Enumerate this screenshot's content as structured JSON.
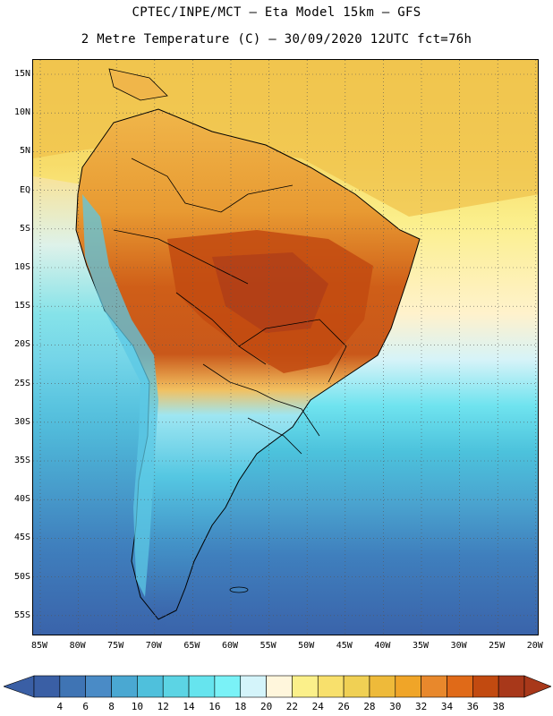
{
  "title_line1": "CPTEC/INPE/MCT –  Eta Model 15km – GFS",
  "title_line2": "2 Metre Temperature (C) – 30/09/2020 12UTC fct=76h",
  "latitude_labels": [
    "15N",
    "10N",
    "5N",
    "EQ",
    "5S",
    "10S",
    "15S",
    "20S",
    "25S",
    "30S",
    "35S",
    "40S",
    "45S",
    "50S",
    "55S"
  ],
  "longitude_labels": [
    "85W",
    "80W",
    "75W",
    "70W",
    "65W",
    "60W",
    "55W",
    "50W",
    "45W",
    "40W",
    "35W",
    "30W",
    "25W",
    "20W"
  ],
  "colorbar": {
    "levels": [
      "4",
      "6",
      "8",
      "10",
      "12",
      "14",
      "16",
      "18",
      "20",
      "22",
      "24",
      "26",
      "28",
      "30",
      "32",
      "34",
      "36",
      "38"
    ],
    "colors": [
      "#3a5fa5",
      "#3f74b4",
      "#4a8bc6",
      "#4aa8d2",
      "#4fc0dc",
      "#5cd4e4",
      "#66e4ee",
      "#7af2f7",
      "#d4f4fa",
      "#fff6dc",
      "#fbf08a",
      "#f8e06c",
      "#f0d054",
      "#eeba3a",
      "#f0a528",
      "#e8882c",
      "#e06a18",
      "#c24a10",
      "#a8381a"
    ]
  },
  "legend_regions": {
    "ocean_north": "warm (~26C)",
    "ocean_south": "cold (~6-10C)"
  }
}
